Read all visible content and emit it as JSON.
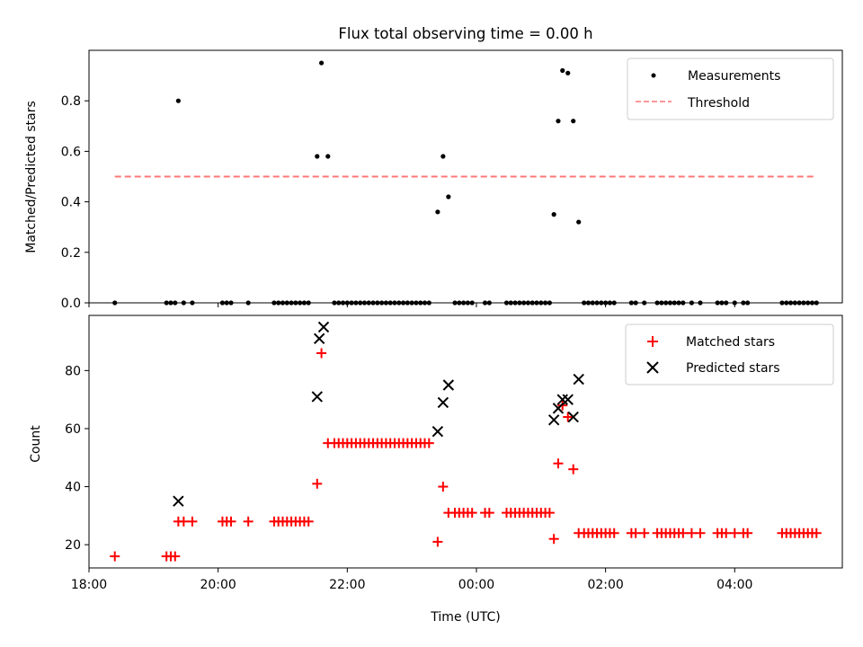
{
  "chart_data": [
    {
      "type": "scatter",
      "title": "Flux total observing time = 0.00 h",
      "ylabel": "Matched/Predicted stars",
      "xlabel": "",
      "x_range": [
        "18:00",
        "05:40"
      ],
      "ylim": [
        0,
        1.0
      ],
      "yticks": [
        "0.0",
        "0.2",
        "0.4",
        "0.6",
        "0.8"
      ],
      "ytick_values": [
        0,
        0.2,
        0.4,
        0.6,
        0.8
      ],
      "xticks_labeled": false,
      "legend_position": "top-right",
      "series": [
        {
          "name": "Measurements",
          "color": "#000000",
          "marker": "dot",
          "points": [
            [
              "18:24",
              0
            ],
            [
              "19:12",
              0
            ],
            [
              "19:16",
              0
            ],
            [
              "19:20",
              0
            ],
            [
              "19:23",
              0.8
            ],
            [
              "19:28",
              0
            ],
            [
              "19:36",
              0
            ],
            [
              "20:04",
              0
            ],
            [
              "20:08",
              0
            ],
            [
              "20:12",
              0
            ],
            [
              "20:28",
              0
            ],
            [
              "20:52",
              0
            ],
            [
              "20:56",
              0
            ],
            [
              "21:00",
              0
            ],
            [
              "21:04",
              0
            ],
            [
              "21:08",
              0
            ],
            [
              "21:12",
              0
            ],
            [
              "21:16",
              0
            ],
            [
              "21:20",
              0
            ],
            [
              "21:24",
              0
            ],
            [
              "21:32",
              0.58
            ],
            [
              "21:36",
              0.95
            ],
            [
              "21:42",
              0.58
            ],
            [
              "21:48",
              0
            ],
            [
              "21:52",
              0
            ],
            [
              "21:56",
              0
            ],
            [
              "22:00",
              0
            ],
            [
              "22:04",
              0
            ],
            [
              "22:08",
              0
            ],
            [
              "22:12",
              0
            ],
            [
              "22:16",
              0
            ],
            [
              "22:20",
              0
            ],
            [
              "22:24",
              0
            ],
            [
              "22:28",
              0
            ],
            [
              "22:32",
              0
            ],
            [
              "22:36",
              0
            ],
            [
              "22:40",
              0
            ],
            [
              "22:44",
              0
            ],
            [
              "22:48",
              0
            ],
            [
              "22:52",
              0
            ],
            [
              "22:56",
              0
            ],
            [
              "23:00",
              0
            ],
            [
              "23:04",
              0
            ],
            [
              "23:08",
              0
            ],
            [
              "23:12",
              0
            ],
            [
              "23:16",
              0
            ],
            [
              "23:24",
              0.36
            ],
            [
              "23:29",
              0.58
            ],
            [
              "23:34",
              0.42
            ],
            [
              "23:40",
              0
            ],
            [
              "23:44",
              0
            ],
            [
              "23:48",
              0
            ],
            [
              "23:52",
              0
            ],
            [
              "23:56",
              0
            ],
            [
              "24:08",
              0
            ],
            [
              "24:12",
              0
            ],
            [
              "24:28",
              0
            ],
            [
              "24:32",
              0
            ],
            [
              "24:36",
              0
            ],
            [
              "24:40",
              0
            ],
            [
              "24:44",
              0
            ],
            [
              "24:48",
              0
            ],
            [
              "24:52",
              0
            ],
            [
              "24:56",
              0
            ],
            [
              "25:00",
              0
            ],
            [
              "25:04",
              0
            ],
            [
              "25:08",
              0
            ],
            [
              "25:12",
              0.35
            ],
            [
              "25:16",
              0.72
            ],
            [
              "25:20",
              0.92
            ],
            [
              "25:25",
              0.91
            ],
            [
              "25:30",
              0.72
            ],
            [
              "25:35",
              0.32
            ],
            [
              "25:40",
              0
            ],
            [
              "25:44",
              0
            ],
            [
              "25:48",
              0
            ],
            [
              "25:52",
              0
            ],
            [
              "25:56",
              0
            ],
            [
              "26:00",
              0
            ],
            [
              "26:04",
              0
            ],
            [
              "26:08",
              0
            ],
            [
              "26:24",
              0
            ],
            [
              "26:28",
              0
            ],
            [
              "26:36",
              0
            ],
            [
              "26:48",
              0
            ],
            [
              "26:52",
              0
            ],
            [
              "26:56",
              0
            ],
            [
              "27:00",
              0
            ],
            [
              "27:04",
              0
            ],
            [
              "27:08",
              0
            ],
            [
              "27:12",
              0
            ],
            [
              "27:20",
              0
            ],
            [
              "27:28",
              0
            ],
            [
              "27:44",
              0
            ],
            [
              "27:48",
              0
            ],
            [
              "27:52",
              0
            ],
            [
              "28:00",
              0
            ],
            [
              "28:08",
              0
            ],
            [
              "28:12",
              0
            ],
            [
              "28:44",
              0
            ],
            [
              "28:48",
              0
            ],
            [
              "28:52",
              0
            ],
            [
              "28:56",
              0
            ],
            [
              "29:00",
              0
            ],
            [
              "29:04",
              0
            ],
            [
              "29:08",
              0
            ],
            [
              "29:12",
              0
            ],
            [
              "29:16",
              0
            ]
          ]
        },
        {
          "name": "Threshold",
          "color": "#ff7777",
          "style": "dashed",
          "points": [
            [
              "18:24",
              0.5
            ],
            [
              "29:16",
              0.5
            ]
          ]
        }
      ]
    },
    {
      "type": "scatter",
      "title": "",
      "ylabel": "Count",
      "xlabel": "Time (UTC)",
      "x_range": [
        "18:00",
        "05:40"
      ],
      "ylim": [
        12,
        99
      ],
      "yticks": [
        "20",
        "40",
        "60",
        "80"
      ],
      "ytick_values": [
        20,
        40,
        60,
        80
      ],
      "xticks": [
        "18:00",
        "20:00",
        "22:00",
        "00:00",
        "02:00",
        "04:00"
      ],
      "xtick_values": [
        "18:00",
        "20:00",
        "22:00",
        "24:00",
        "26:00",
        "28:00"
      ],
      "legend_position": "top-right",
      "series": [
        {
          "name": "Matched stars",
          "color": "#ff0000",
          "marker": "plus",
          "points": [
            [
              "18:24",
              16
            ],
            [
              "19:12",
              16
            ],
            [
              "19:16",
              16
            ],
            [
              "19:20",
              16
            ],
            [
              "19:23",
              28
            ],
            [
              "19:28",
              28
            ],
            [
              "19:36",
              28
            ],
            [
              "20:04",
              28
            ],
            [
              "20:08",
              28
            ],
            [
              "20:12",
              28
            ],
            [
              "20:28",
              28
            ],
            [
              "20:52",
              28
            ],
            [
              "20:56",
              28
            ],
            [
              "21:00",
              28
            ],
            [
              "21:04",
              28
            ],
            [
              "21:08",
              28
            ],
            [
              "21:12",
              28
            ],
            [
              "21:16",
              28
            ],
            [
              "21:20",
              28
            ],
            [
              "21:24",
              28
            ],
            [
              "21:32",
              41
            ],
            [
              "21:36",
              86
            ],
            [
              "21:42",
              55
            ],
            [
              "21:48",
              55
            ],
            [
              "21:52",
              55
            ],
            [
              "21:56",
              55
            ],
            [
              "22:00",
              55
            ],
            [
              "22:04",
              55
            ],
            [
              "22:08",
              55
            ],
            [
              "22:12",
              55
            ],
            [
              "22:16",
              55
            ],
            [
              "22:20",
              55
            ],
            [
              "22:24",
              55
            ],
            [
              "22:28",
              55
            ],
            [
              "22:32",
              55
            ],
            [
              "22:36",
              55
            ],
            [
              "22:40",
              55
            ],
            [
              "22:44",
              55
            ],
            [
              "22:48",
              55
            ],
            [
              "22:52",
              55
            ],
            [
              "22:56",
              55
            ],
            [
              "23:00",
              55
            ],
            [
              "23:04",
              55
            ],
            [
              "23:08",
              55
            ],
            [
              "23:12",
              55
            ],
            [
              "23:16",
              55
            ],
            [
              "23:24",
              21
            ],
            [
              "23:29",
              40
            ],
            [
              "23:34",
              31
            ],
            [
              "23:40",
              31
            ],
            [
              "23:44",
              31
            ],
            [
              "23:48",
              31
            ],
            [
              "23:52",
              31
            ],
            [
              "23:56",
              31
            ],
            [
              "24:08",
              31
            ],
            [
              "24:12",
              31
            ],
            [
              "24:28",
              31
            ],
            [
              "24:32",
              31
            ],
            [
              "24:36",
              31
            ],
            [
              "24:40",
              31
            ],
            [
              "24:44",
              31
            ],
            [
              "24:48",
              31
            ],
            [
              "24:52",
              31
            ],
            [
              "24:56",
              31
            ],
            [
              "25:00",
              31
            ],
            [
              "25:04",
              31
            ],
            [
              "25:08",
              31
            ],
            [
              "25:12",
              22
            ],
            [
              "25:16",
              48
            ],
            [
              "25:20",
              68
            ],
            [
              "25:25",
              64
            ],
            [
              "25:30",
              46
            ],
            [
              "25:35",
              24
            ],
            [
              "25:40",
              24
            ],
            [
              "25:44",
              24
            ],
            [
              "25:48",
              24
            ],
            [
              "25:52",
              24
            ],
            [
              "25:56",
              24
            ],
            [
              "26:00",
              24
            ],
            [
              "26:04",
              24
            ],
            [
              "26:08",
              24
            ],
            [
              "26:24",
              24
            ],
            [
              "26:28",
              24
            ],
            [
              "26:36",
              24
            ],
            [
              "26:48",
              24
            ],
            [
              "26:52",
              24
            ],
            [
              "26:56",
              24
            ],
            [
              "27:00",
              24
            ],
            [
              "27:04",
              24
            ],
            [
              "27:08",
              24
            ],
            [
              "27:12",
              24
            ],
            [
              "27:20",
              24
            ],
            [
              "27:28",
              24
            ],
            [
              "27:44",
              24
            ],
            [
              "27:48",
              24
            ],
            [
              "27:52",
              24
            ],
            [
              "28:00",
              24
            ],
            [
              "28:08",
              24
            ],
            [
              "28:12",
              24
            ],
            [
              "28:44",
              24
            ],
            [
              "28:48",
              24
            ],
            [
              "28:52",
              24
            ],
            [
              "28:56",
              24
            ],
            [
              "29:00",
              24
            ],
            [
              "29:04",
              24
            ],
            [
              "29:08",
              24
            ],
            [
              "29:12",
              24
            ],
            [
              "29:16",
              24
            ]
          ]
        },
        {
          "name": "Predicted stars",
          "color": "#000000",
          "marker": "x",
          "points": [
            [
              "19:23",
              35
            ],
            [
              "21:32",
              71
            ],
            [
              "21:34",
              91
            ],
            [
              "21:38",
              95
            ],
            [
              "23:24",
              59
            ],
            [
              "23:29",
              69
            ],
            [
              "23:34",
              75
            ],
            [
              "25:12",
              63
            ],
            [
              "25:16",
              67
            ],
            [
              "25:20",
              70
            ],
            [
              "25:25",
              70
            ],
            [
              "25:30",
              64
            ],
            [
              "25:35",
              77
            ]
          ]
        }
      ]
    }
  ]
}
